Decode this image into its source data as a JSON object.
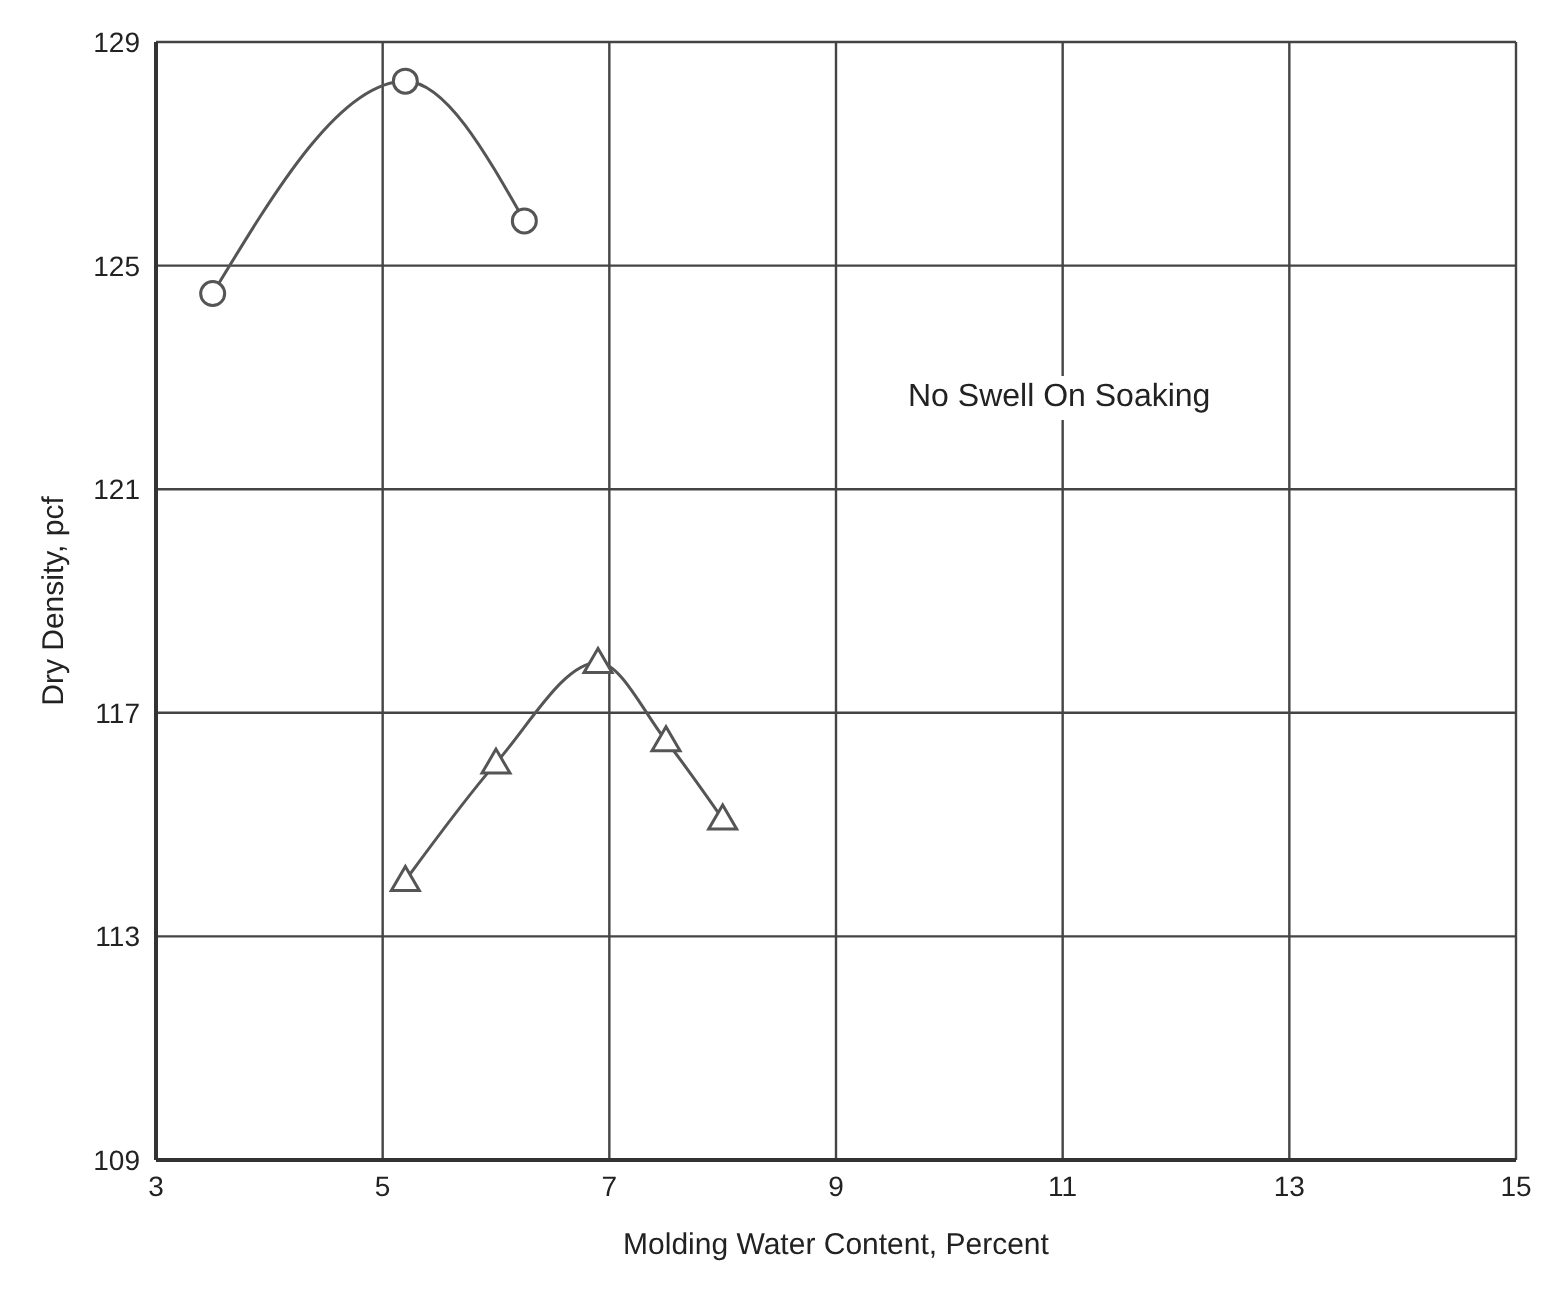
{
  "chart_data": {
    "type": "line",
    "xlabel": "Molding Water Content, Percent",
    "ylabel": "Dry Density, pcf",
    "xlim": [
      3,
      15
    ],
    "xticks": [
      3,
      5,
      7,
      9,
      11,
      13,
      15
    ],
    "ylim": [
      109,
      129
    ],
    "yticks": [
      109,
      113,
      117,
      121,
      125,
      129
    ],
    "grid": true,
    "line_style": "solid",
    "series": [
      {
        "color": "#555555",
        "marker": "circle",
        "x": [
          3.5,
          5.2,
          6.25
        ],
        "values": [
          124.5,
          128.3,
          125.8
        ]
      },
      {
        "color": "#555555",
        "marker": "triangle",
        "x": [
          5.2,
          6.0,
          6.9,
          7.5,
          8.0
        ],
        "values": [
          114.0,
          116.1,
          117.9,
          116.5,
          115.1
        ]
      }
    ],
    "annotations": [
      "No Swell On Soaking"
    ]
  }
}
